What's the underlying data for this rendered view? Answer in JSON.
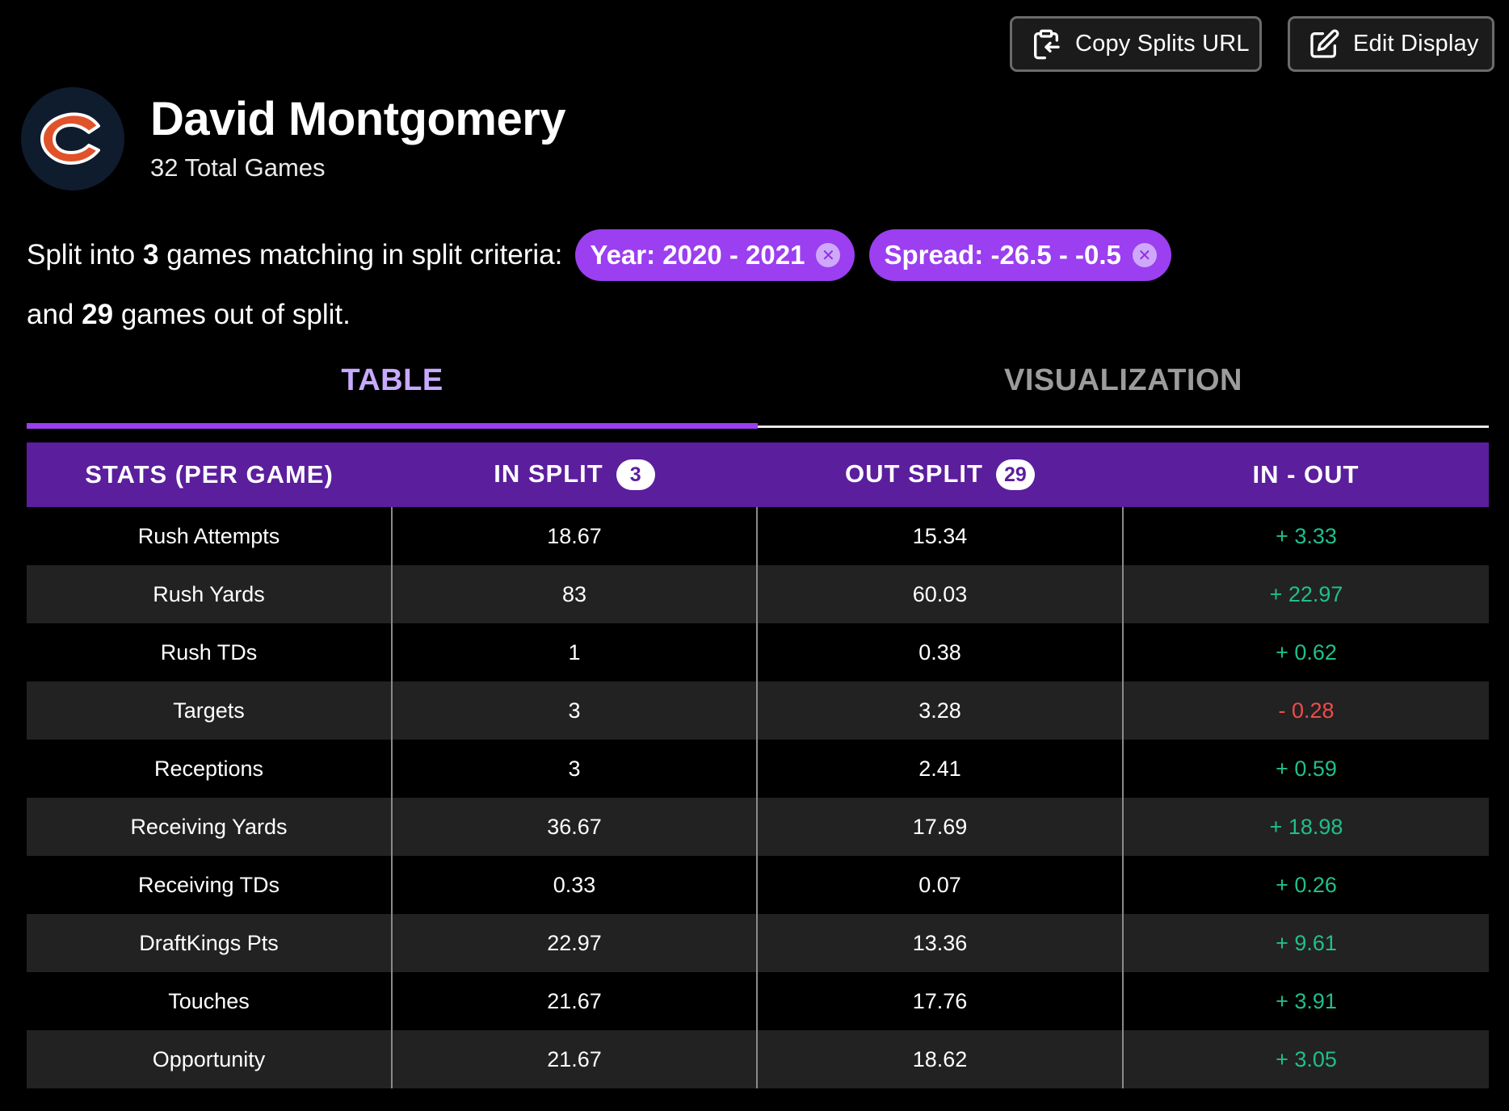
{
  "toolbar": {
    "copy_label": "Copy Splits URL",
    "copy_icon": "clipboard-icon",
    "edit_label": "Edit Display",
    "edit_icon": "edit-icon"
  },
  "player": {
    "name": "David Montgomery",
    "total_games": "32 Total Games",
    "team_logo_icon": "bears-c-logo-icon"
  },
  "split": {
    "prefix": "Split into",
    "in_count": "3",
    "middle": "games matching in split criteria:",
    "chips": [
      {
        "label": "Year: 2020 - 2021"
      },
      {
        "label": "Spread: -26.5 - -0.5"
      }
    ],
    "line2_prefix": "and",
    "out_count": "29",
    "line2_suffix": "games out of split."
  },
  "tabs": [
    {
      "label": "TABLE",
      "active": true
    },
    {
      "label": "VISUALIZATION",
      "active": false
    }
  ],
  "table": {
    "headers": {
      "stat": "STATS (PER GAME)",
      "in_split": "IN SPLIT",
      "in_badge": "3",
      "out_split": "OUT SPLIT",
      "out_badge": "29",
      "diff": "IN - OUT"
    },
    "rows": [
      {
        "stat": "Rush Attempts",
        "in": "18.67",
        "out": "15.34",
        "diff": "+ 3.33",
        "sign": "pos"
      },
      {
        "stat": "Rush Yards",
        "in": "83",
        "out": "60.03",
        "diff": "+ 22.97",
        "sign": "pos"
      },
      {
        "stat": "Rush TDs",
        "in": "1",
        "out": "0.38",
        "diff": "+ 0.62",
        "sign": "pos"
      },
      {
        "stat": "Targets",
        "in": "3",
        "out": "3.28",
        "diff": "- 0.28",
        "sign": "neg"
      },
      {
        "stat": "Receptions",
        "in": "3",
        "out": "2.41",
        "diff": "+ 0.59",
        "sign": "pos"
      },
      {
        "stat": "Receiving Yards",
        "in": "36.67",
        "out": "17.69",
        "diff": "+ 18.98",
        "sign": "pos"
      },
      {
        "stat": "Receiving TDs",
        "in": "0.33",
        "out": "0.07",
        "diff": "+ 0.26",
        "sign": "pos"
      },
      {
        "stat": "DraftKings Pts",
        "in": "22.97",
        "out": "13.36",
        "diff": "+ 9.61",
        "sign": "pos"
      },
      {
        "stat": "Touches",
        "in": "21.67",
        "out": "17.76",
        "diff": "+ 3.91",
        "sign": "pos"
      },
      {
        "stat": "Opportunity",
        "in": "21.67",
        "out": "18.62",
        "diff": "+ 3.05",
        "sign": "pos"
      }
    ]
  },
  "colors": {
    "accent": "#9b3ff0",
    "header_bg": "#5b1e9d",
    "positive": "#1fbf8c",
    "negative": "#f04b4b"
  }
}
